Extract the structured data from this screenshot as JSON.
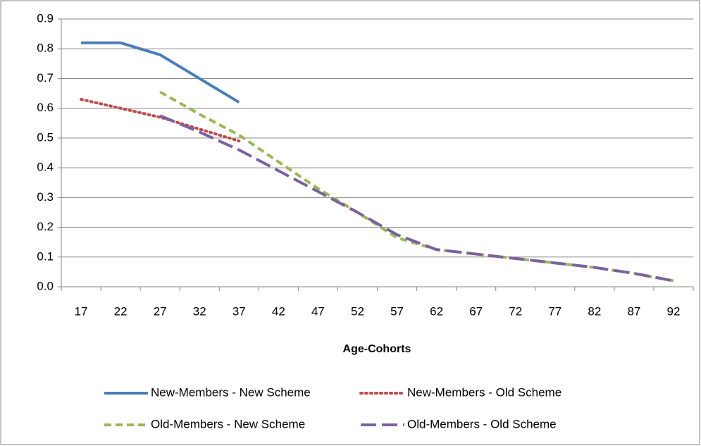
{
  "chart_data": {
    "type": "line",
    "x_label": "Age-Cohorts",
    "categories": [
      "17",
      "22",
      "27",
      "32",
      "37",
      "42",
      "47",
      "52",
      "57",
      "62",
      "67",
      "72",
      "77",
      "82",
      "87",
      "92"
    ],
    "series": [
      {
        "name": "New-Members - New Scheme",
        "color": "#4a7ebb",
        "style": "solid",
        "values": [
          0.82,
          0.82,
          0.78,
          0.7,
          0.62,
          null,
          null,
          null,
          null,
          null,
          null,
          null,
          null,
          null,
          null,
          null
        ]
      },
      {
        "name": "New-Members - Old Scheme",
        "color": "#be4b48",
        "style": "dotted",
        "values": [
          0.63,
          0.6,
          0.57,
          0.53,
          0.49,
          null,
          null,
          null,
          null,
          null,
          null,
          null,
          null,
          null,
          null,
          null
        ]
      },
      {
        "name": "Old-Members - New Scheme",
        "color": "#98b954",
        "style": "dashed",
        "values": [
          null,
          null,
          0.655,
          0.58,
          0.51,
          0.42,
          0.33,
          0.25,
          0.165,
          0.125,
          0.11,
          0.095,
          0.08,
          0.065,
          0.045,
          0.02
        ]
      },
      {
        "name": "Old-Members - Old Scheme",
        "color": "#7d60a0",
        "style": "longdash",
        "values": [
          null,
          null,
          0.575,
          0.52,
          0.46,
          0.39,
          0.32,
          0.25,
          0.175,
          0.125,
          0.11,
          0.095,
          0.08,
          0.065,
          0.045,
          0.02
        ]
      }
    ],
    "ylim": [
      0,
      0.9
    ],
    "yticks": [
      {
        "value": 0,
        "label": "0.0"
      },
      0.1,
      0.2,
      0.3,
      0.4,
      0.5,
      0.6,
      0.7,
      0.8,
      0.9
    ],
    "grid": true,
    "legend": "bottom"
  }
}
